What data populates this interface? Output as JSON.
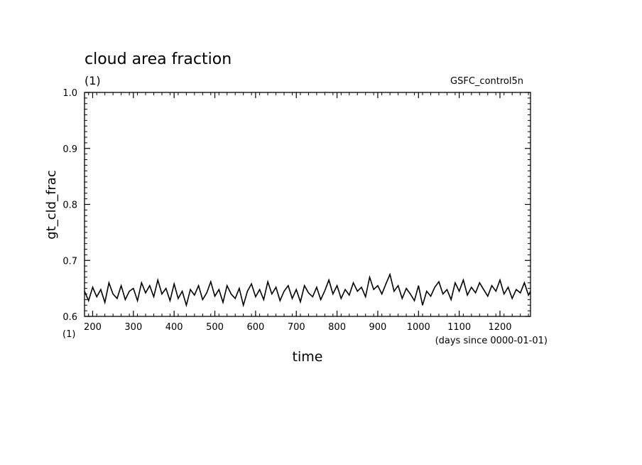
{
  "chart_data": {
    "type": "line",
    "title": "cloud area fraction",
    "units_label": "(1)",
    "experiment": "GSFC_control5n",
    "xlabel": "time",
    "x_units": "(days since 0000-01-01)",
    "ylabel": "gt_cld_frac",
    "y_corner_units": "(1)",
    "xlim": [
      180,
      1275
    ],
    "ylim": [
      0.6,
      1.0
    ],
    "x_ticks": [
      200,
      300,
      400,
      500,
      600,
      700,
      800,
      900,
      1000,
      1100,
      1200
    ],
    "y_ticks": [
      0.6,
      0.7,
      0.8,
      0.9,
      1.0
    ],
    "y_tick_labels": [
      "0.6",
      "0.7",
      "0.8",
      "0.9",
      "1.0"
    ],
    "line_color": "#000000",
    "series": [
      {
        "x": [
          180,
          190,
          200,
          210,
          220,
          230,
          240,
          250,
          260,
          270,
          280,
          290,
          300,
          310,
          320,
          330,
          340,
          350,
          360,
          370,
          380,
          390,
          400,
          410,
          420,
          430,
          440,
          450,
          460,
          470,
          480,
          490,
          500,
          510,
          520,
          530,
          540,
          550,
          560,
          570,
          580,
          590,
          600,
          610,
          620,
          630,
          640,
          650,
          660,
          670,
          680,
          690,
          700,
          710,
          720,
          730,
          740,
          750,
          760,
          770,
          780,
          790,
          800,
          810,
          820,
          830,
          840,
          850,
          860,
          870,
          880,
          890,
          900,
          910,
          920,
          930,
          940,
          950,
          960,
          970,
          980,
          990,
          1000,
          1010,
          1020,
          1030,
          1040,
          1050,
          1060,
          1070,
          1080,
          1090,
          1100,
          1110,
          1120,
          1130,
          1140,
          1150,
          1160,
          1170,
          1180,
          1190,
          1200,
          1210,
          1220,
          1230,
          1240,
          1250,
          1260,
          1270,
          1275
        ],
        "values": [
          0.645,
          0.628,
          0.652,
          0.635,
          0.648,
          0.625,
          0.66,
          0.64,
          0.632,
          0.655,
          0.63,
          0.645,
          0.65,
          0.628,
          0.66,
          0.642,
          0.655,
          0.635,
          0.665,
          0.64,
          0.65,
          0.628,
          0.658,
          0.632,
          0.645,
          0.62,
          0.648,
          0.638,
          0.655,
          0.63,
          0.642,
          0.662,
          0.636,
          0.648,
          0.625,
          0.655,
          0.64,
          0.632,
          0.65,
          0.62,
          0.645,
          0.658,
          0.635,
          0.648,
          0.63,
          0.662,
          0.64,
          0.652,
          0.628,
          0.645,
          0.655,
          0.632,
          0.648,
          0.626,
          0.655,
          0.642,
          0.635,
          0.652,
          0.63,
          0.646,
          0.665,
          0.64,
          0.655,
          0.632,
          0.648,
          0.638,
          0.66,
          0.645,
          0.652,
          0.635,
          0.67,
          0.648,
          0.655,
          0.64,
          0.658,
          0.675,
          0.645,
          0.655,
          0.632,
          0.65,
          0.64,
          0.628,
          0.655,
          0.62,
          0.645,
          0.636,
          0.652,
          0.662,
          0.64,
          0.648,
          0.63,
          0.66,
          0.645,
          0.665,
          0.638,
          0.652,
          0.642,
          0.66,
          0.648,
          0.636,
          0.655,
          0.645,
          0.665,
          0.64,
          0.652,
          0.632,
          0.648,
          0.642,
          0.66,
          0.638,
          0.645
        ]
      }
    ]
  }
}
